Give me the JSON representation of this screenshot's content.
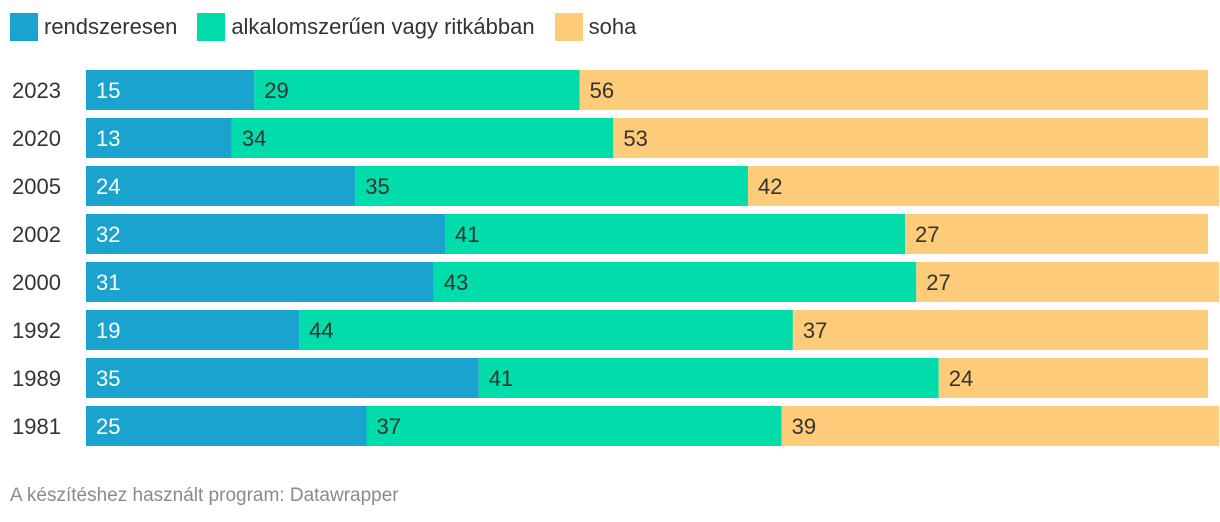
{
  "chart_data": {
    "type": "bar",
    "orientation": "horizontal-stacked-100",
    "categories": [
      "2023",
      "2020",
      "2005",
      "2002",
      "2000",
      "1992",
      "1989",
      "1981"
    ],
    "series": [
      {
        "name": "rendszeresen",
        "color": "#1ba3cf",
        "label_color": "#ffffff",
        "values": [
          15,
          13,
          24,
          32,
          31,
          19,
          35,
          25
        ]
      },
      {
        "name": "alkalomszerűen vagy ritkábban",
        "color": "#00dcaa",
        "label_color": "#333333",
        "values": [
          29,
          34,
          35,
          41,
          43,
          44,
          41,
          37
        ]
      },
      {
        "name": "soha",
        "color": "#fecb78",
        "label_color": "#333333",
        "values": [
          56,
          53,
          42,
          27,
          27,
          37,
          24,
          39
        ]
      }
    ],
    "xlim": [
      0,
      100
    ],
    "grid": false,
    "legend_position": "top-left"
  },
  "footer": {
    "credit": "A készítéshez használt program: Datawrapper"
  }
}
